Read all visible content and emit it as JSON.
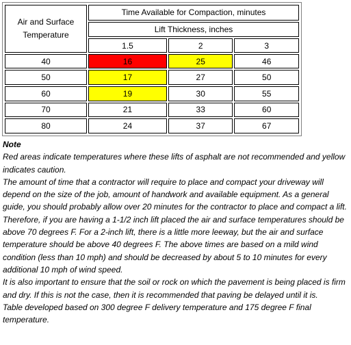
{
  "table": {
    "row_header": [
      "Air and Surface",
      "Temperature"
    ],
    "time_header": "Time Available for Compaction, minutes",
    "lift_header": "Lift Thickness, inches",
    "thicknesses": [
      "1.5",
      "2",
      "3"
    ],
    "rows": [
      {
        "temp": "40",
        "values": [
          "16",
          "25",
          "46"
        ],
        "flags": [
          "red",
          "yellow",
          ""
        ]
      },
      {
        "temp": "50",
        "values": [
          "17",
          "27",
          "50"
        ],
        "flags": [
          "yellow",
          "",
          ""
        ]
      },
      {
        "temp": "60",
        "values": [
          "19",
          "30",
          "55"
        ],
        "flags": [
          "yellow",
          "",
          ""
        ]
      },
      {
        "temp": "70",
        "values": [
          "21",
          "33",
          "60"
        ],
        "flags": [
          "",
          "",
          ""
        ]
      },
      {
        "temp": "80",
        "values": [
          "24",
          "37",
          "67"
        ],
        "flags": [
          "",
          "",
          ""
        ]
      }
    ],
    "colors": {
      "red": "#ff0000",
      "yellow": "#ffff00"
    }
  },
  "notes": {
    "title": "Note",
    "paragraphs": [
      "Red areas indicate temperatures where these lifts of asphalt are not recommended and yellow indicates caution.",
      "The amount of time that a contractor will require to place and compact your driveway will depend on the size of the job, amount of handwork and available equipment. As a general guide, you should probably allow over 20 minutes for the contractor to place and compact a lift. Therefore, if you are having a 1-1/2 inch lift placed the air and surface temperatures should be above 70 degrees F. For a 2-inch lift, there is a little more leeway, but the air and surface temperature should be above 40 degrees F. The above times are based on a mild wind condition (less than 10 mph) and should be decreased by about 5 to 10 minutes for every additional 10 mph of wind speed.",
      "It is also important to ensure that the soil or rock on which the pavement is being placed is firm and dry. If this is not the case, then it is recommended that paving be delayed until it is.",
      "Table developed based on 300 degree F delivery temperature and 175 degree F final temperature."
    ]
  }
}
